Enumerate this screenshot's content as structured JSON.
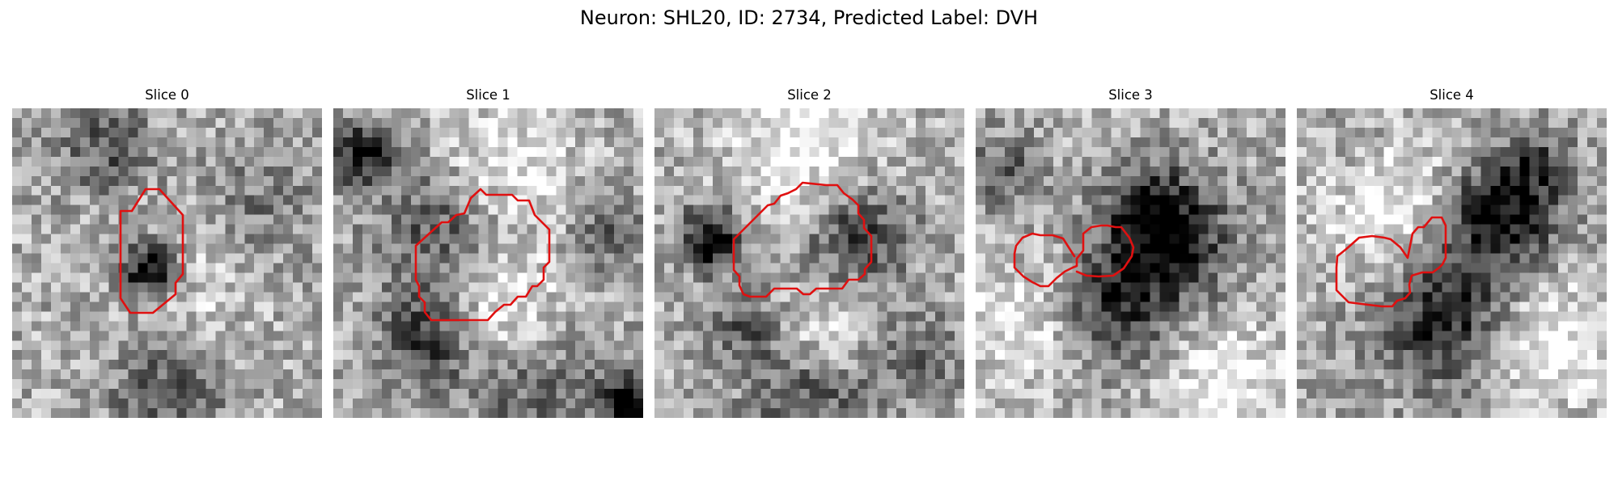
{
  "figure": {
    "title": "Neuron: SHL20, ID: 2734, Predicted Label: DVH",
    "contour_color": "#e01010",
    "colormap": "grayscale"
  },
  "panels": [
    {
      "title": "Slice 0"
    },
    {
      "title": "Slice 1"
    },
    {
      "title": "Slice 2"
    },
    {
      "title": "Slice 3"
    },
    {
      "title": "Slice 4"
    }
  ]
}
